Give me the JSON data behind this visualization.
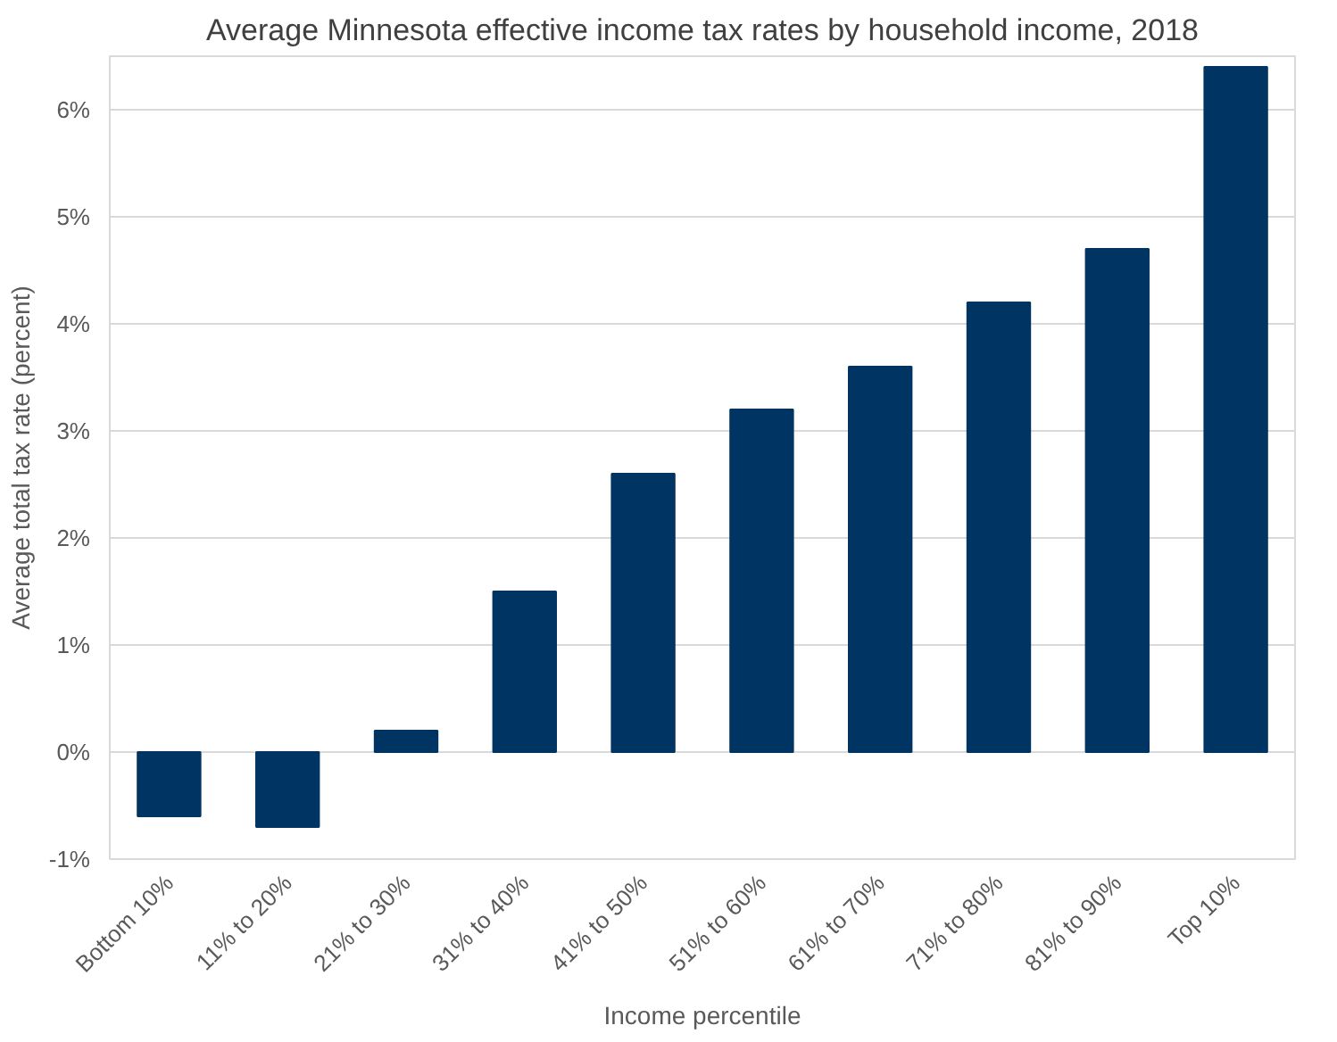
{
  "chart_data": {
    "type": "bar",
    "title": "Average Minnesota effective income tax rates by household income, 2018",
    "xlabel": "Income percentile",
    "ylabel": "Average total tax rate (percent)",
    "categories": [
      "Bottom 10%",
      "11% to 20%",
      "21% to 30%",
      "31% to 40%",
      "41% to 50%",
      "51% to 60%",
      "61% to 70%",
      "71% to 80%",
      "81% to 90%",
      "Top 10%"
    ],
    "values": [
      -0.6,
      -0.7,
      0.2,
      1.5,
      2.6,
      3.2,
      3.6,
      4.2,
      4.7,
      6.4
    ],
    "color": "#003462",
    "ylim": [
      -1,
      6.5
    ],
    "yticks": [
      {
        "value": -1,
        "label": "-1%"
      },
      {
        "value": 0,
        "label": "0%"
      },
      {
        "value": 1,
        "label": "1%"
      },
      {
        "value": 2,
        "label": "2%"
      },
      {
        "value": 3,
        "label": "3%"
      },
      {
        "value": 4,
        "label": "4%"
      },
      {
        "value": 5,
        "label": "5%"
      },
      {
        "value": 6,
        "label": "6%"
      }
    ],
    "grid": "y"
  }
}
